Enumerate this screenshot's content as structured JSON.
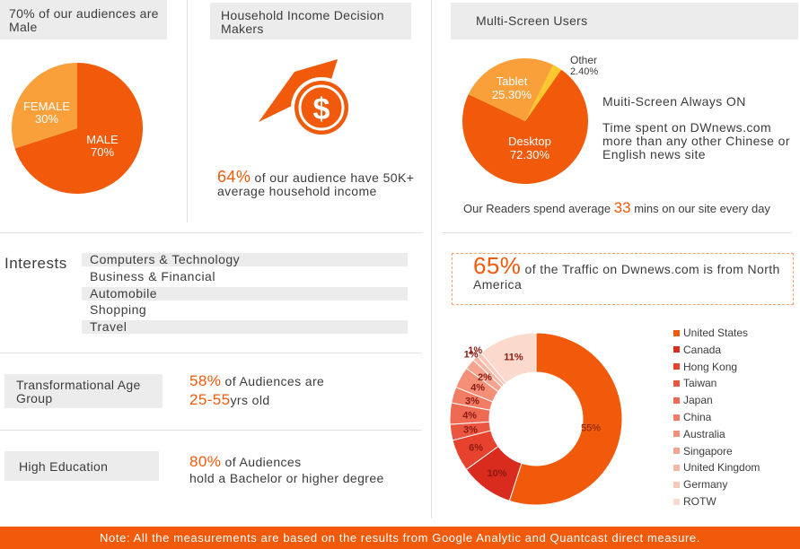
{
  "gender": {
    "header": "70% of our audiences are Male",
    "female_label": "FEMALE",
    "female_pct": "30%",
    "male_label": "MALE",
    "male_pct": "70%"
  },
  "income": {
    "header": "Household Income Decision Makers",
    "highlight": "64%",
    "text": " of our audience have 50K+ average household income"
  },
  "multiscreen": {
    "header": "Multi-Screen  Users",
    "tablet_label": "Tablet",
    "tablet_pct": "25.30%",
    "other_label": "Other",
    "other_pct": "2.40%",
    "desktop_label": "Desktop",
    "desktop_pct": "72.30%",
    "always_on": "Muiti-Screen Always ON",
    "time_spent": "Time spent on DWnews.com more than any other Chinese or English news site",
    "readers_pre": "Our Readers spend average ",
    "readers_num": "33",
    "readers_post": " mins on our site every day"
  },
  "interests": {
    "label": "Interests",
    "items": [
      "Computers & Technology",
      "Business & Financial",
      "Automobile",
      "Shopping",
      "Travel"
    ]
  },
  "age": {
    "label": "Transformational Age Group",
    "pct": "58%",
    "text1": " of  Audiences are",
    "range": "25-55",
    "text2": "yrs old"
  },
  "education": {
    "label": "High Education",
    "pct": "80%",
    "text1": " of  Audiences",
    "text2": "hold a Bachelor or higher degree"
  },
  "traffic": {
    "pct": "65%",
    "text": " of the Traffic on Dwnews.com is from North America"
  },
  "footer": "Note: All the measurements are based on the results from Google Analytic and Quantcast direct measure.",
  "chart_data": [
    {
      "type": "pie",
      "categories": [
        "MALE",
        "FEMALE"
      ],
      "values": [
        70,
        30
      ],
      "colors": [
        "#f05a0a",
        "#f9a03a"
      ],
      "title": "70% of our audiences are Male"
    },
    {
      "type": "pie",
      "categories": [
        "Desktop",
        "Tablet",
        "Other"
      ],
      "values": [
        72.3,
        25.3,
        2.4
      ],
      "colors": [
        "#f05a0a",
        "#f9a03a",
        "#fcc82e"
      ],
      "title": "Multi-Screen  Users"
    },
    {
      "type": "pie",
      "subtype": "donut",
      "categories": [
        "United States",
        "Canada",
        "Hong Kong",
        "Taiwan",
        "Japan",
        "China",
        "Australia",
        "Singapore",
        "United Kingdom",
        "Germany",
        "ROTW"
      ],
      "values": [
        55,
        10,
        6,
        3,
        4,
        3,
        4,
        2,
        1,
        1,
        11
      ],
      "labels": [
        "55%",
        "10%",
        "6%",
        "3%",
        "4%",
        "3%",
        "4%",
        "2%",
        "1%",
        "1%",
        "11%"
      ],
      "colors": [
        "#f05a0a",
        "#d92b1e",
        "#e6422e",
        "#ea5640",
        "#ee6a52",
        "#f27d64",
        "#f49078",
        "#f6a48e",
        "#f8b6a4",
        "#f9c8b8",
        "#fbd9cc"
      ],
      "legend_position": "right"
    }
  ]
}
